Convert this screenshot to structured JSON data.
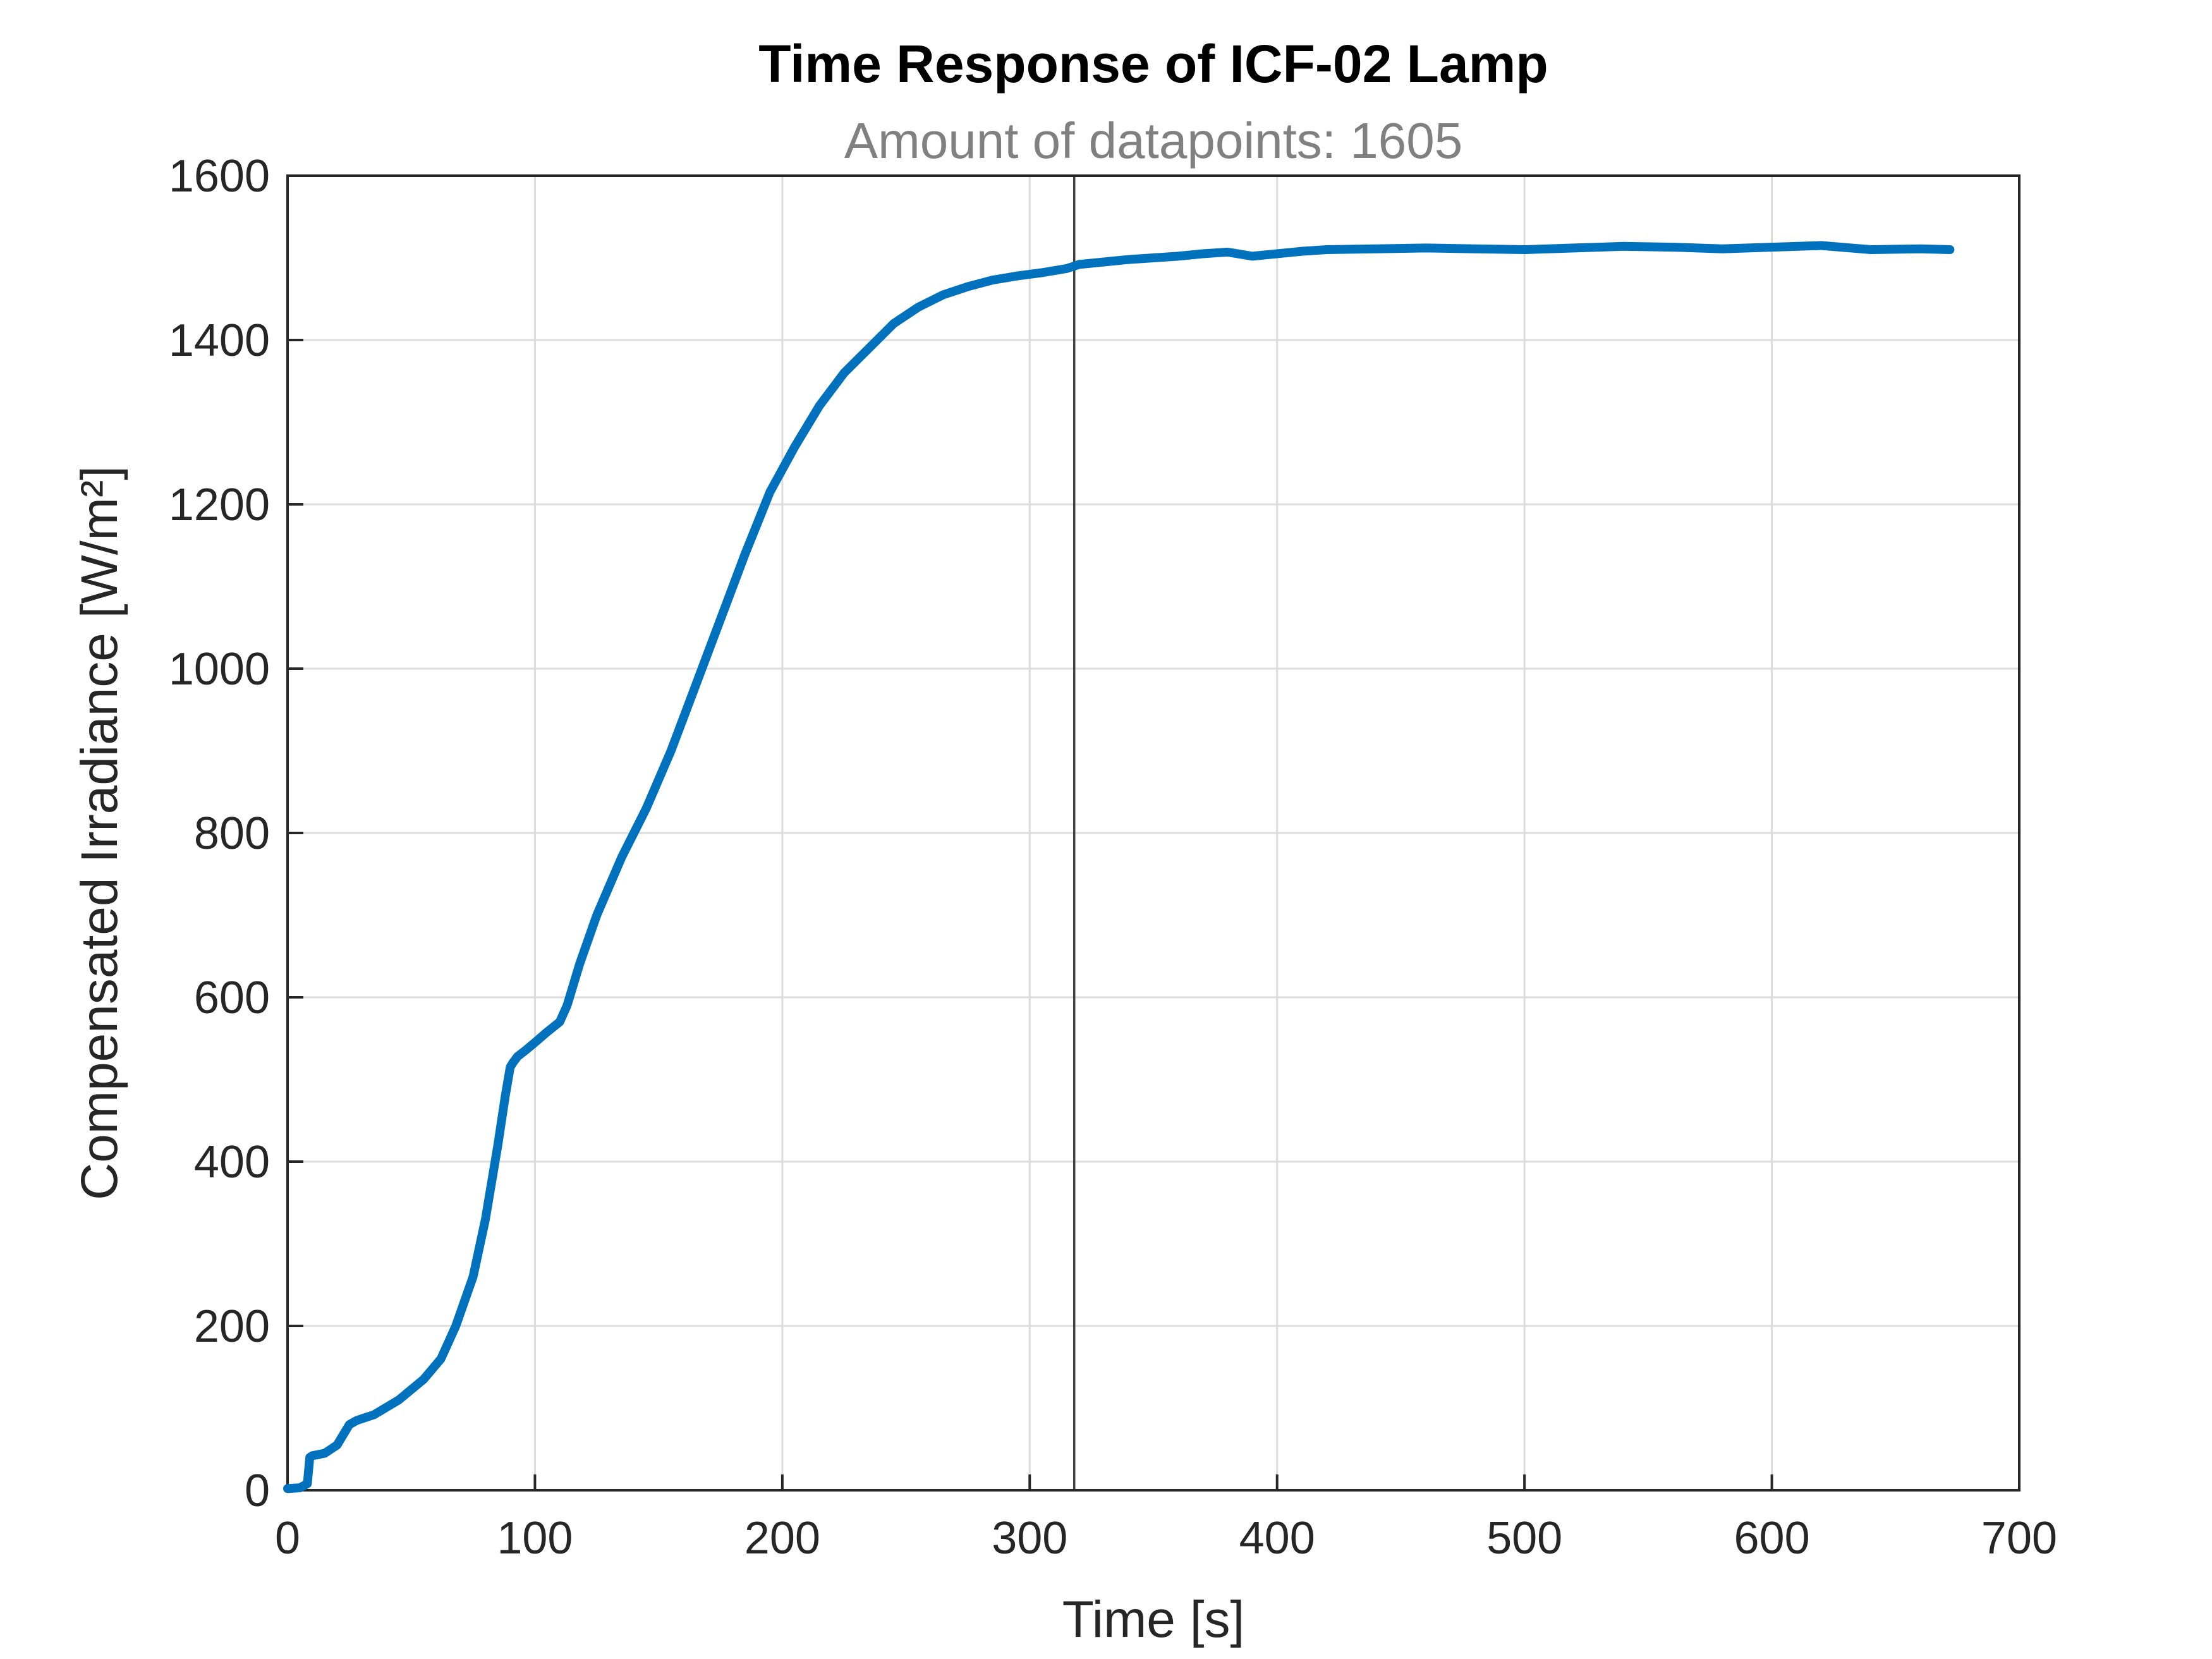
{
  "chart_data": {
    "type": "scatter",
    "title": "Time Response of ICF-02 Lamp",
    "subtitle": "Amount of datapoints: 1605",
    "xlabel": "Time [s]",
    "ylabel": "Compensated Irradiance [W/m²]",
    "xlim": [
      0,
      700
    ],
    "ylim": [
      0,
      1600
    ],
    "xticks": [
      0,
      100,
      200,
      300,
      400,
      500,
      600,
      700
    ],
    "yticks": [
      0,
      200,
      400,
      600,
      800,
      1000,
      1200,
      1400,
      1600
    ],
    "grid": true,
    "vertical_line_x": 318,
    "series_color": "#0072bd",
    "series": [
      {
        "x": [
          0,
          5,
          8,
          9,
          10,
          15,
          20,
          23,
          25,
          28,
          35,
          45,
          55,
          62,
          68,
          75,
          80,
          85,
          88,
          90,
          91,
          93,
          96,
          100,
          105,
          110,
          113,
          118,
          125,
          135,
          145,
          155,
          165,
          175,
          185,
          195,
          205,
          215,
          225,
          235,
          245,
          255,
          265,
          275,
          285,
          295,
          305,
          315,
          320,
          330,
          340,
          350,
          360,
          370,
          380,
          390,
          400,
          410,
          420,
          440,
          460,
          480,
          500,
          520,
          540,
          560,
          580,
          600,
          620,
          640,
          660,
          672
        ],
        "y": [
          2,
          3,
          8,
          40,
          42,
          45,
          55,
          70,
          80,
          85,
          92,
          110,
          135,
          160,
          200,
          260,
          330,
          420,
          480,
          515,
          520,
          528,
          535,
          545,
          558,
          570,
          590,
          640,
          700,
          770,
          830,
          900,
          980,
          1060,
          1140,
          1215,
          1270,
          1320,
          1360,
          1390,
          1420,
          1440,
          1455,
          1465,
          1473,
          1478,
          1482,
          1487,
          1492,
          1495,
          1498,
          1500,
          1502,
          1505,
          1507,
          1502,
          1505,
          1508,
          1510,
          1511,
          1512,
          1511,
          1510,
          1512,
          1514,
          1513,
          1511,
          1513,
          1515,
          1510,
          1511,
          1510
        ]
      }
    ]
  }
}
